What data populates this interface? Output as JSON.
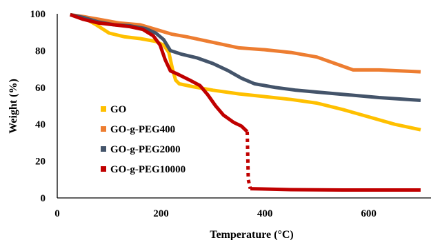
{
  "chart_data": {
    "type": "line",
    "xlabel": "Temperature (°C)",
    "ylabel": "Weight (%)",
    "xlim": [
      0,
      720
    ],
    "ylim": [
      0,
      100
    ],
    "xticks": [
      0,
      200,
      400,
      600
    ],
    "yticks": [
      0,
      20,
      40,
      60,
      80,
      100
    ],
    "legend_position": "left-center",
    "series": [
      {
        "name": "GO",
        "color": "#FFC000",
        "style": "solid",
        "points": [
          [
            25,
            99.5
          ],
          [
            50,
            98
          ],
          [
            75,
            94
          ],
          [
            100,
            89.5
          ],
          [
            130,
            87.5
          ],
          [
            160,
            86.5
          ],
          [
            190,
            85
          ],
          [
            205,
            83
          ],
          [
            215,
            79
          ],
          [
            222,
            70
          ],
          [
            228,
            64
          ],
          [
            235,
            62
          ],
          [
            260,
            60.5
          ],
          [
            300,
            58.5
          ],
          [
            350,
            56.5
          ],
          [
            400,
            55
          ],
          [
            450,
            53.5
          ],
          [
            500,
            51.5
          ],
          [
            550,
            48
          ],
          [
            600,
            44
          ],
          [
            650,
            40
          ],
          [
            700,
            37
          ]
        ]
      },
      {
        "name": "GO-g-PEG400",
        "color": "#ED7D31",
        "style": "solid",
        "points": [
          [
            25,
            99.5
          ],
          [
            50,
            98.5
          ],
          [
            80,
            97
          ],
          [
            120,
            95
          ],
          [
            160,
            94
          ],
          [
            190,
            91.5
          ],
          [
            220,
            89
          ],
          [
            250,
            87.5
          ],
          [
            300,
            84.5
          ],
          [
            350,
            81.5
          ],
          [
            400,
            80.5
          ],
          [
            450,
            79
          ],
          [
            500,
            76.5
          ],
          [
            540,
            72.5
          ],
          [
            570,
            69.5
          ],
          [
            620,
            69.5
          ],
          [
            700,
            68.5
          ]
        ]
      },
      {
        "name": "GO-g-PEG2000",
        "color": "#44546A",
        "style": "solid",
        "points": [
          [
            25,
            99.5
          ],
          [
            50,
            98
          ],
          [
            80,
            95.5
          ],
          [
            110,
            94
          ],
          [
            140,
            93.5
          ],
          [
            170,
            92
          ],
          [
            190,
            89.5
          ],
          [
            205,
            86
          ],
          [
            218,
            80
          ],
          [
            240,
            78
          ],
          [
            270,
            76
          ],
          [
            300,
            73
          ],
          [
            330,
            69
          ],
          [
            355,
            65
          ],
          [
            380,
            62
          ],
          [
            420,
            60
          ],
          [
            460,
            58.5
          ],
          [
            500,
            57.5
          ],
          [
            560,
            56
          ],
          [
            620,
            54.5
          ],
          [
            700,
            53
          ]
        ]
      },
      {
        "name": "GO-g-PEG10000",
        "color": "#C00000",
        "style": "solid",
        "points": [
          [
            25,
            99.5
          ],
          [
            50,
            97
          ],
          [
            80,
            95
          ],
          [
            110,
            94
          ],
          [
            140,
            93
          ],
          [
            165,
            91.5
          ],
          [
            185,
            88
          ],
          [
            198,
            83
          ],
          [
            208,
            75
          ],
          [
            218,
            69
          ],
          [
            230,
            67.5
          ],
          [
            255,
            64
          ],
          [
            275,
            61
          ],
          [
            290,
            56
          ],
          [
            305,
            50
          ],
          [
            320,
            45
          ],
          [
            340,
            41
          ],
          [
            355,
            39
          ],
          [
            366,
            36
          ]
        ]
      },
      {
        "name": "",
        "color": "#C00000",
        "style": "dotted",
        "points": [
          [
            366,
            36
          ],
          [
            368,
            10
          ],
          [
            372,
            5
          ]
        ]
      },
      {
        "name": "",
        "color": "#C00000",
        "style": "solid",
        "points": [
          [
            372,
            5
          ],
          [
            450,
            4.5
          ],
          [
            550,
            4.3
          ],
          [
            700,
            4.3
          ]
        ]
      }
    ]
  }
}
